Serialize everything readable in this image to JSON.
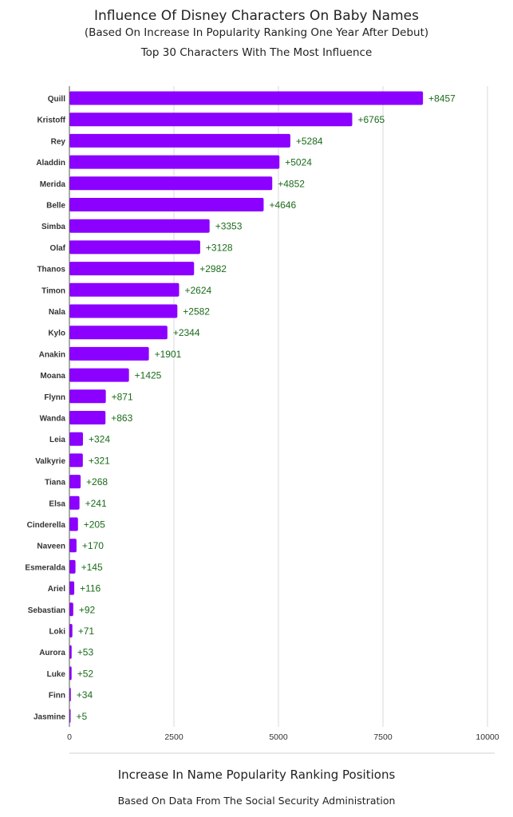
{
  "chart_data": {
    "type": "bar",
    "orientation": "horizontal",
    "title": "Influence Of Disney Characters On Baby Names",
    "subtitle": "(Based On Increase In Popularity Ranking One Year After Debut)",
    "subtitle2": "Top 30 Characters With The Most Influence",
    "xlabel": "Increase In Name Popularity Ranking Positions",
    "source": "Based On Data From The Social Security Administration",
    "xlim": [
      0,
      10000
    ],
    "xticks": [
      0,
      2500,
      5000,
      7500,
      10000
    ],
    "grid": true,
    "bar_color": "#8b00ff",
    "label_color": "#1a6b1a",
    "categories": [
      "Quill",
      "Kristoff",
      "Rey",
      "Aladdin",
      "Merida",
      "Belle",
      "Simba",
      "Olaf",
      "Thanos",
      "Timon",
      "Nala",
      "Kylo",
      "Anakin",
      "Moana",
      "Flynn",
      "Wanda",
      "Leia",
      "Valkyrie",
      "Tiana",
      "Elsa",
      "Cinderella",
      "Naveen",
      "Esmeralda",
      "Ariel",
      "Sebastian",
      "Loki",
      "Aurora",
      "Luke",
      "Finn",
      "Jasmine"
    ],
    "values": [
      8457,
      6765,
      5284,
      5024,
      4852,
      4646,
      3353,
      3128,
      2982,
      2624,
      2582,
      2344,
      1901,
      1425,
      871,
      863,
      324,
      321,
      268,
      241,
      205,
      170,
      145,
      116,
      92,
      71,
      53,
      52,
      34,
      5
    ],
    "value_labels": [
      "+8457",
      "+6765",
      "+5284",
      "+5024",
      "+4852",
      "+4646",
      "+3353",
      "+3128",
      "+2982",
      "+2624",
      "+2582",
      "+2344",
      "+1901",
      "+1425",
      "+871",
      "+863",
      "+324",
      "+321",
      "+268",
      "+241",
      "+205",
      "+170",
      "+145",
      "+116",
      "+92",
      "+71",
      "+53",
      "+52",
      "+34",
      "+5"
    ]
  }
}
